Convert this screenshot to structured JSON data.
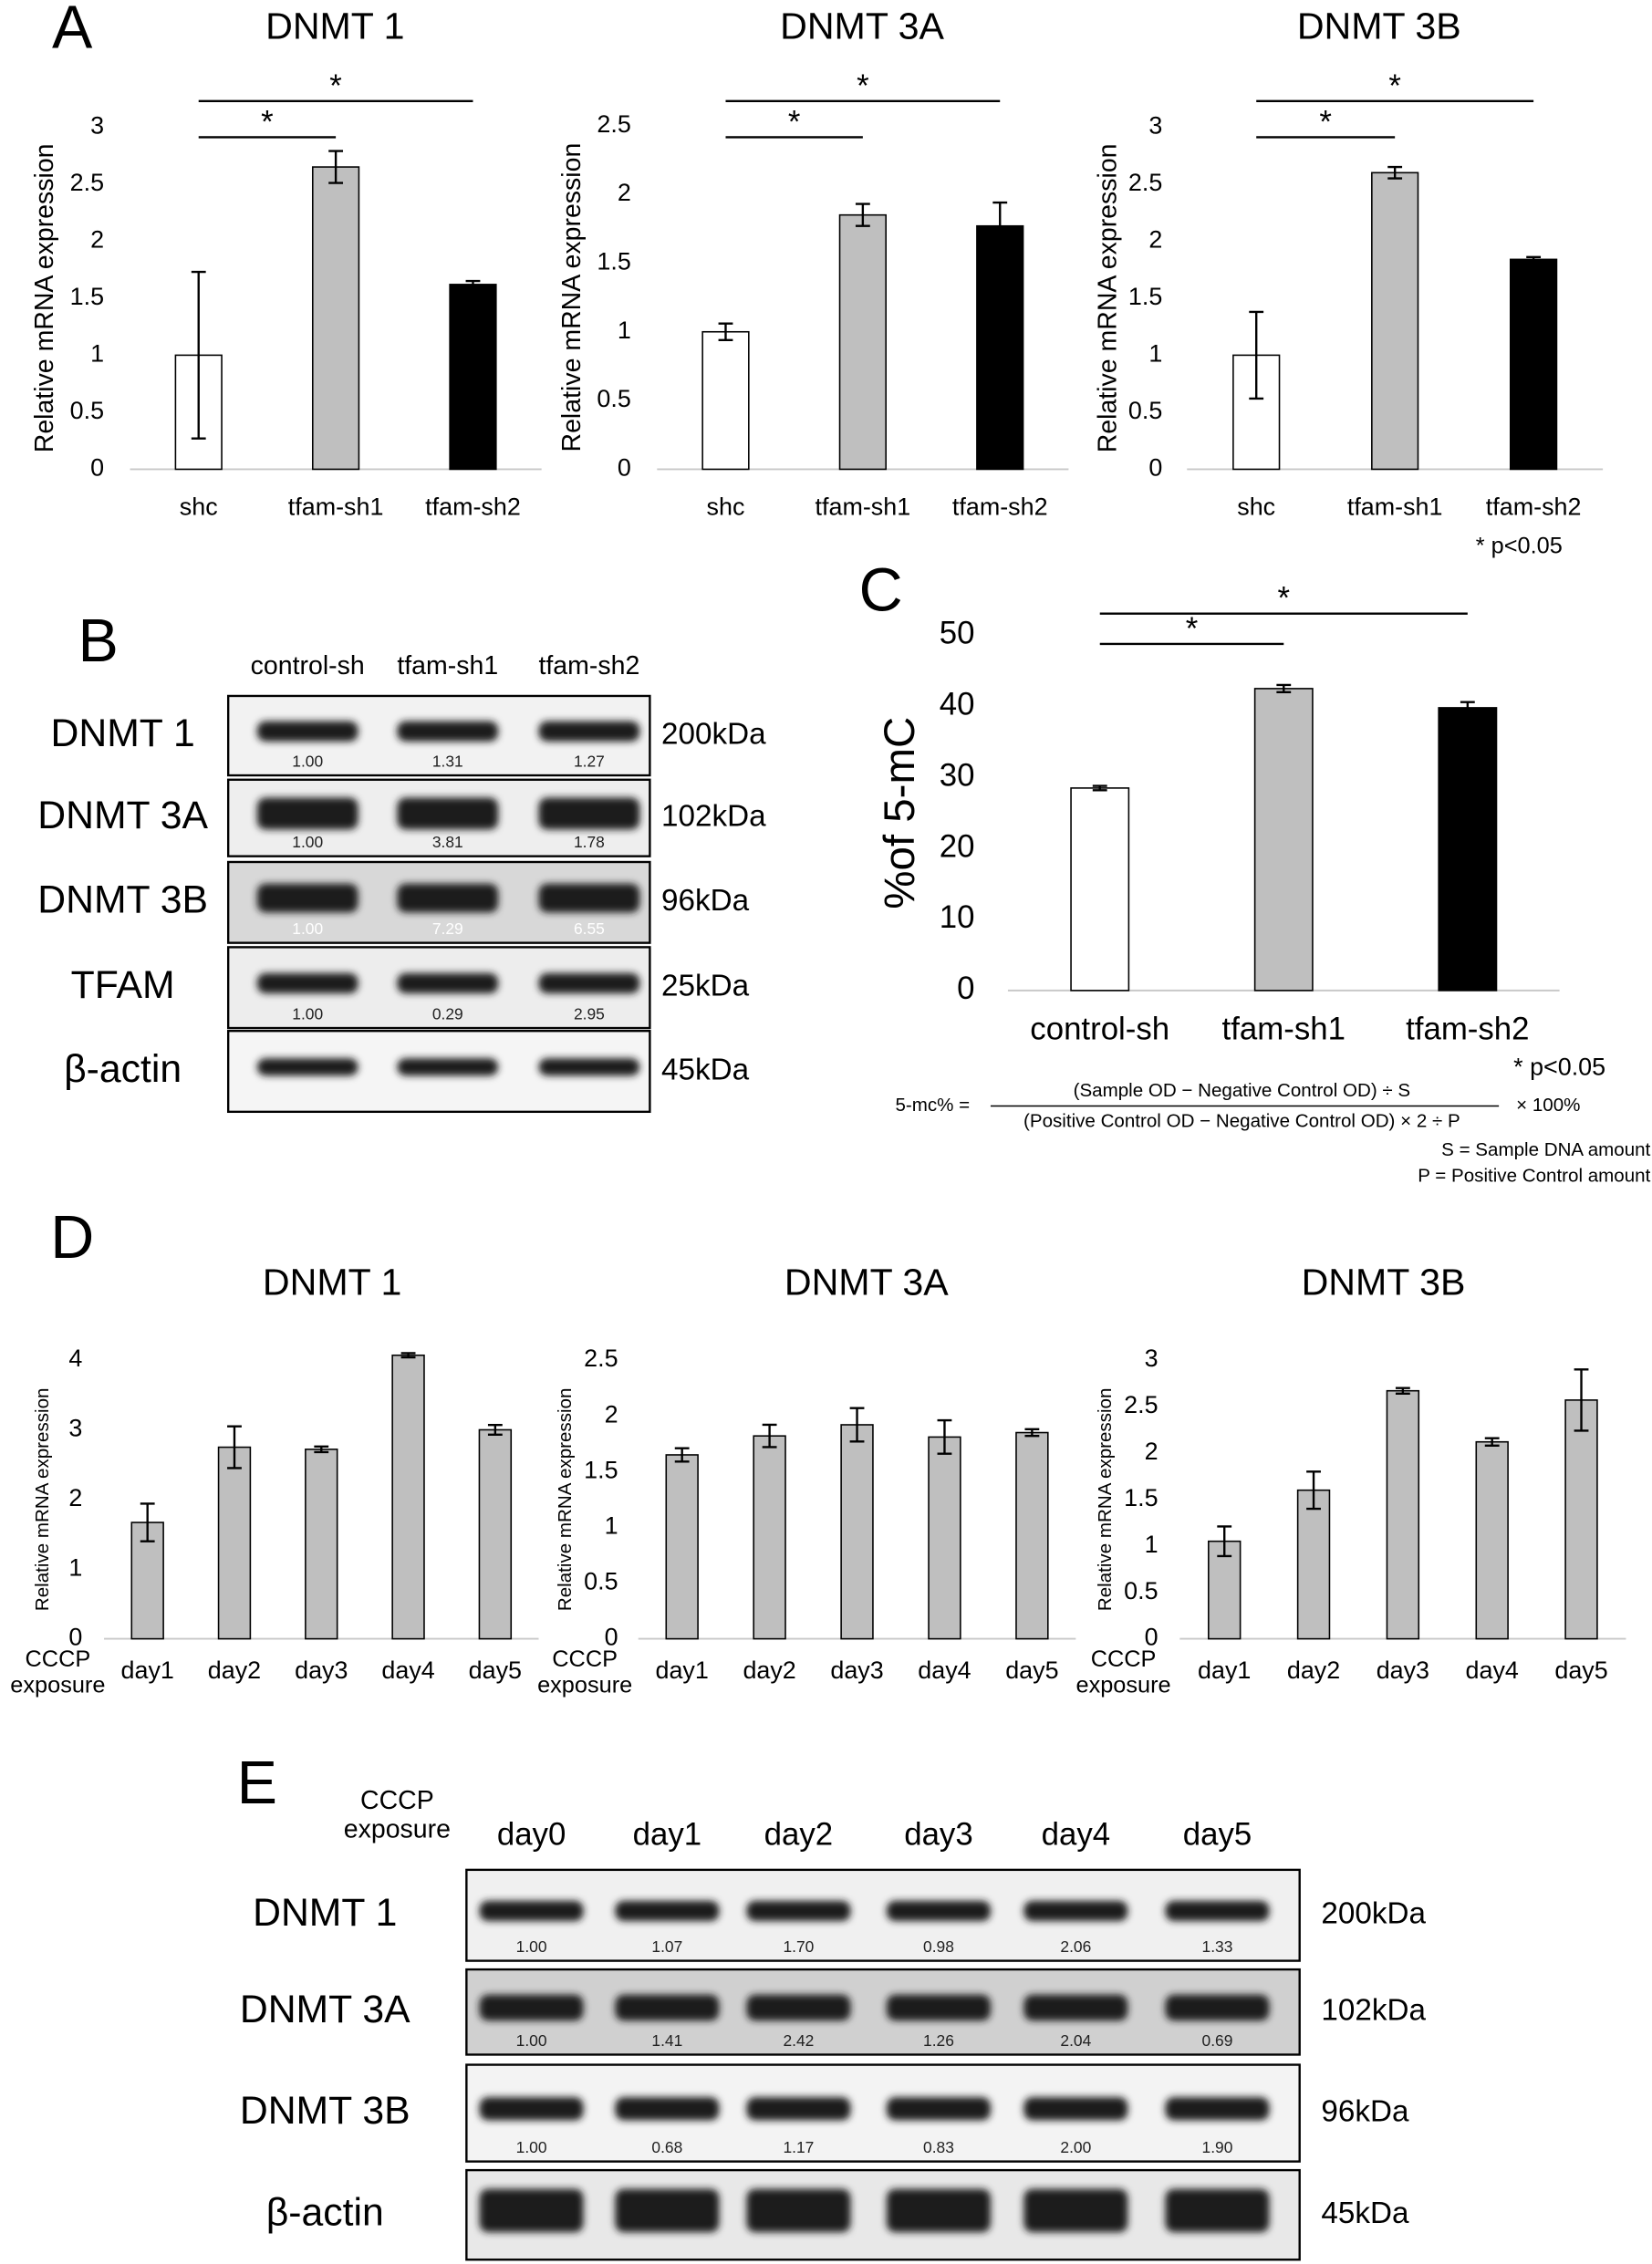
{
  "panel_labels": [
    "A",
    "B",
    "C",
    "D",
    "E"
  ],
  "chart_data": [
    {
      "type": "bar",
      "title": "DNMT 1",
      "y_label": "Relative mRNA expression",
      "categories": [
        "shc",
        "tfam-sh1",
        "tfam-sh2"
      ],
      "values": [
        1,
        2.65,
        1.62
      ],
      "errors": [
        0.73,
        0.14,
        0.03
      ],
      "colors": [
        "#ffffff",
        "#bfbfbf",
        "#000000"
      ],
      "ylim": [
        0,
        3
      ],
      "yticks": [
        0,
        0.5,
        1,
        1.5,
        2,
        2.5,
        3
      ],
      "annotations": [
        "*",
        "*"
      ]
    },
    {
      "type": "bar",
      "title": "DNMT 3A",
      "y_label": "Relative mRNA expression",
      "categories": [
        "shc",
        "tfam-sh1",
        "tfam-sh2"
      ],
      "values": [
        1,
        1.85,
        1.77
      ],
      "errors": [
        0.06,
        0.08,
        0.17
      ],
      "colors": [
        "#ffffff",
        "#bfbfbf",
        "#000000"
      ],
      "ylim": [
        0,
        2.5
      ],
      "yticks": [
        0,
        0.5,
        1,
        1.5,
        2,
        2.5
      ],
      "annotations": [
        "*",
        "*"
      ]
    },
    {
      "type": "bar",
      "title": "DNMT 3B",
      "y_label": "Relative mRNA expression",
      "categories": [
        "shc",
        "tfam-sh1",
        "tfam-sh2"
      ],
      "values": [
        1,
        2.6,
        1.84
      ],
      "errors": [
        0.38,
        0.05,
        0.02
      ],
      "colors": [
        "#ffffff",
        "#bfbfbf",
        "#000000"
      ],
      "ylim": [
        0,
        3
      ],
      "yticks": [
        0,
        0.5,
        1,
        1.5,
        2,
        2.5,
        3
      ],
      "annotations": [
        "*",
        "*"
      ],
      "note": "* p<0.05"
    },
    {
      "type": "bar",
      "y_label": "%of 5-mC",
      "categories": [
        "control-sh",
        "tfam-sh1",
        "tfam-sh2"
      ],
      "values": [
        28.5,
        42.5,
        39.8
      ],
      "errors": [
        0.3,
        0.5,
        0.8
      ],
      "colors": [
        "#ffffff",
        "#bfbfbf",
        "#000000"
      ],
      "ylim": [
        0,
        50
      ],
      "yticks": [
        0,
        10,
        20,
        30,
        40,
        50
      ],
      "annotations": [
        "*",
        "*"
      ],
      "note": "* p<0.05",
      "formula": {
        "lhs": "5-mc% =",
        "numerator": "(Sample OD − Negative Control OD) ÷ S",
        "denominator": "(Positive Control  OD − Negative Control OD) × 2  ÷ P",
        "factor": "× 100%",
        "definitions": [
          "S = Sample DNA amount",
          "P = Positive Control  amount"
        ]
      }
    },
    {
      "type": "bar",
      "title": "DNMT 1",
      "y_label": "Relative mRNA expression",
      "x_label": [
        "CCCP",
        "exposure"
      ],
      "categories": [
        "day1",
        "day2",
        "day3",
        "day4",
        "day5"
      ],
      "values": [
        1.67,
        2.75,
        2.72,
        4.07,
        3.0
      ],
      "errors": [
        0.27,
        0.3,
        0.04,
        0.03,
        0.07
      ],
      "color": "#bfbfbf",
      "ylim": [
        0,
        4
      ],
      "yticks": [
        0,
        1,
        2,
        3,
        4
      ]
    },
    {
      "type": "bar",
      "title": "DNMT 3A",
      "y_label": "Relative mRNA expression",
      "x_label": [
        "CCCP",
        "exposure"
      ],
      "categories": [
        "day1",
        "day2",
        "day3",
        "day4",
        "day5"
      ],
      "values": [
        1.65,
        1.82,
        1.92,
        1.81,
        1.85
      ],
      "errors": [
        0.06,
        0.1,
        0.15,
        0.15,
        0.03
      ],
      "color": "#bfbfbf",
      "ylim": [
        0,
        2.5
      ],
      "yticks": [
        0,
        0.5,
        1,
        1.5,
        2,
        2.5
      ]
    },
    {
      "type": "bar",
      "title": "DNMT 3B",
      "y_label": "Relative mRNA expression",
      "x_label": [
        "CCCP",
        "exposure"
      ],
      "categories": [
        "day1",
        "day2",
        "day3",
        "day4",
        "day5"
      ],
      "values": [
        1.05,
        1.6,
        2.67,
        2.12,
        2.57
      ],
      "errors": [
        0.16,
        0.2,
        0.03,
        0.04,
        0.33
      ],
      "color": "#bfbfbf",
      "ylim": [
        0,
        3
      ],
      "yticks": [
        0,
        0.5,
        1,
        1.5,
        2,
        2.5,
        3
      ]
    }
  ],
  "blots": [
    {
      "lanes": [
        "control-sh",
        "tfam-sh1",
        "tfam-sh2"
      ],
      "rows": [
        {
          "name": "DNMT 1",
          "values": [
            "1.00",
            "1.31",
            "1.27"
          ],
          "size": "200kDa"
        },
        {
          "name": "DNMT 3A",
          "values": [
            "1.00",
            "3.81",
            "1.78"
          ],
          "size": "102kDa"
        },
        {
          "name": "DNMT 3B",
          "values": [
            "1.00",
            "7.29",
            "6.55"
          ],
          "size": "96kDa"
        },
        {
          "name": "TFAM",
          "values": [
            "1.00",
            "0.29",
            "2.95"
          ],
          "size": "25kDa"
        },
        {
          "name": "β-actin",
          "size": "45kDa"
        }
      ]
    },
    {
      "header": [
        "CCCP",
        "exposure"
      ],
      "lanes": [
        "day0",
        "day1",
        "day2",
        "day3",
        "day4",
        "day5"
      ],
      "rows": [
        {
          "name": "DNMT 1",
          "values": [
            "1.00",
            "1.07",
            "1.70",
            "0.98",
            "2.06",
            "1.33"
          ],
          "size": "200kDa"
        },
        {
          "name": "DNMT 3A",
          "values": [
            "1.00",
            "1.41",
            "2.42",
            "1.26",
            "2.04",
            "0.69"
          ],
          "size": "102kDa"
        },
        {
          "name": "DNMT 3B",
          "values": [
            "1.00",
            "0.68",
            "1.17",
            "0.83",
            "2.00",
            "1.90"
          ],
          "size": "96kDa"
        },
        {
          "name": "β-actin",
          "size": "45kDa"
        }
      ]
    }
  ]
}
